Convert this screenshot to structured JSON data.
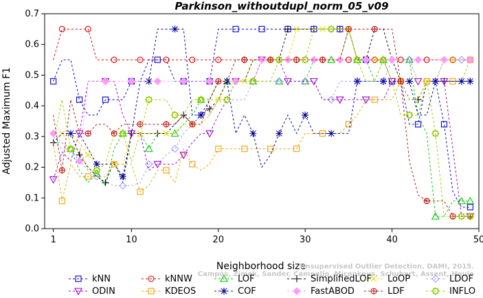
{
  "chart_data": {
    "type": "line",
    "title": "Parkinson_withoutdupl_norm_05_v09",
    "xlabel": "Neighborhood size",
    "ylabel": "Adjusted Maximum F1",
    "xlim": [
      0,
      50
    ],
    "ylim": [
      0,
      0.7
    ],
    "xticks": [
      1,
      10,
      20,
      30,
      40,
      50
    ],
    "yticks": [
      0.0,
      0.1,
      0.2,
      0.3,
      0.4,
      0.5,
      0.6,
      0.7
    ],
    "xtick_labels": [
      "1",
      "10",
      "20",
      "30",
      "40",
      "50"
    ],
    "ytick_labels": [
      "0.0",
      "0.1",
      "0.2",
      "0.3",
      "0.4",
      "0.5",
      "0.6",
      "0.7"
    ],
    "grid": false,
    "legend_position": "bottom",
    "annotation": {
      "line1": "Unsupervised Outlier Detection. DAMI, 2015.",
      "line2": "Campos, Zimek, Sander, Campello, Micenkova, Schubert, Assent, Houle"
    },
    "x": [
      1,
      2,
      3,
      4,
      5,
      6,
      7,
      8,
      9,
      10,
      11,
      12,
      13,
      14,
      15,
      16,
      17,
      18,
      19,
      20,
      21,
      22,
      23,
      24,
      25,
      26,
      27,
      28,
      29,
      30,
      31,
      32,
      33,
      34,
      35,
      36,
      37,
      38,
      39,
      40,
      41,
      42,
      43,
      44,
      45,
      46,
      47,
      48,
      49
    ],
    "series": [
      {
        "name": "kNN",
        "color": "#0000dd",
        "marker": "square",
        "values": [
          0.48,
          0.55,
          0.55,
          0.42,
          0.37,
          0.37,
          0.42,
          0.42,
          0.42,
          0.48,
          0.48,
          0.55,
          0.55,
          0.55,
          0.48,
          0.48,
          0.48,
          0.48,
          0.48,
          0.65,
          0.65,
          0.65,
          0.65,
          0.65,
          0.65,
          0.65,
          0.65,
          0.65,
          0.65,
          0.65,
          0.65,
          0.65,
          0.65,
          0.65,
          0.65,
          0.55,
          0.55,
          0.55,
          0.55,
          0.48,
          0.48,
          0.34,
          0.34,
          0.48,
          0.48,
          0.34,
          0.12,
          0.07,
          0.07
        ]
      },
      {
        "name": "kNNW",
        "color": "#dd0000",
        "marker": "circle",
        "values": [
          0.55,
          0.65,
          0.65,
          0.65,
          0.65,
          0.55,
          0.55,
          0.55,
          0.55,
          0.55,
          0.55,
          0.55,
          0.55,
          0.55,
          0.55,
          0.55,
          0.55,
          0.55,
          0.55,
          0.55,
          0.55,
          0.55,
          0.55,
          0.55,
          0.55,
          0.55,
          0.55,
          0.55,
          0.55,
          0.55,
          0.55,
          0.55,
          0.55,
          0.55,
          0.55,
          0.55,
          0.55,
          0.55,
          0.55,
          0.55,
          0.55,
          0.55,
          0.55,
          0.55,
          0.55,
          0.55,
          0.55,
          0.55,
          0.55
        ]
      },
      {
        "name": "LOF",
        "color": "#00cc00",
        "marker": "triangle-up",
        "values": [
          0.28,
          0.28,
          0.26,
          0.19,
          0.15,
          0.18,
          0.14,
          0.26,
          0.31,
          0.31,
          0.31,
          0.26,
          0.31,
          0.31,
          0.31,
          0.34,
          0.37,
          0.42,
          0.42,
          0.48,
          0.48,
          0.48,
          0.48,
          0.48,
          0.48,
          0.48,
          0.48,
          0.48,
          0.48,
          0.48,
          0.55,
          0.55,
          0.55,
          0.55,
          0.65,
          0.55,
          0.55,
          0.48,
          0.55,
          0.55,
          0.55,
          0.55,
          0.37,
          0.31,
          0.04,
          0.04,
          0.09,
          0.09,
          0.09
        ]
      },
      {
        "name": "SimplifiedLOF",
        "color": "#000000",
        "marker": "plus",
        "values": [
          0.28,
          0.31,
          0.31,
          0.24,
          0.2,
          0.17,
          0.15,
          0.22,
          0.15,
          0.31,
          0.31,
          0.31,
          0.31,
          0.31,
          0.34,
          0.37,
          0.34,
          0.37,
          0.39,
          0.42,
          0.48,
          0.48,
          0.48,
          0.55,
          0.55,
          0.55,
          0.55,
          0.65,
          0.65,
          0.65,
          0.65,
          0.65,
          0.65,
          0.65,
          0.65,
          0.55,
          0.55,
          0.65,
          0.65,
          0.55,
          0.48,
          0.42,
          0.42,
          0.48,
          0.48,
          0.48,
          0.48,
          0.48,
          0.48
        ]
      },
      {
        "name": "LoOP",
        "color": "#e6d800",
        "marker": "x",
        "values": [
          0.28,
          0.31,
          0.31,
          0.28,
          0.24,
          0.21,
          0.21,
          0.21,
          0.21,
          0.31,
          0.31,
          0.31,
          0.31,
          0.31,
          0.31,
          0.34,
          0.34,
          0.34,
          0.37,
          0.42,
          0.48,
          0.48,
          0.48,
          0.55,
          0.55,
          0.55,
          0.55,
          0.55,
          0.65,
          0.65,
          0.65,
          0.65,
          0.65,
          0.65,
          0.65,
          0.55,
          0.55,
          0.55,
          0.55,
          0.48,
          0.48,
          0.42,
          0.42,
          0.48,
          0.48,
          0.55,
          0.55,
          0.55,
          0.55
        ]
      },
      {
        "name": "LDOF",
        "color": "#a0a0ff",
        "marker": "diamond",
        "values": [
          0.28,
          0.26,
          0.26,
          0.22,
          0.19,
          0.17,
          0.15,
          0.14,
          0.14,
          0.14,
          0.15,
          0.21,
          0.21,
          0.24,
          0.26,
          0.31,
          0.34,
          0.37,
          0.37,
          0.42,
          0.42,
          0.42,
          0.42,
          0.48,
          0.48,
          0.48,
          0.48,
          0.48,
          0.48,
          0.48,
          0.48,
          0.42,
          0.42,
          0.48,
          0.48,
          0.48,
          0.48,
          0.48,
          0.48,
          0.55,
          0.55,
          0.55,
          0.48,
          0.48,
          0.48,
          0.55,
          0.55,
          0.55,
          0.55
        ]
      },
      {
        "name": "ODIN",
        "color": "#9900cc",
        "marker": "triangle-down",
        "values": [
          0.16,
          0.25,
          0.22,
          0.31,
          0.48,
          0.48,
          0.48,
          0.48,
          0.37,
          0.31,
          0.31,
          0.19,
          0.21,
          0.21,
          0.21,
          0.24,
          0.28,
          0.31,
          0.31,
          0.37,
          0.42,
          0.48,
          0.48,
          0.48,
          0.55,
          0.55,
          0.55,
          0.48,
          0.48,
          0.48,
          0.48,
          0.42,
          0.42,
          0.42,
          0.42,
          0.42,
          0.42,
          0.42,
          0.42,
          0.48,
          0.48,
          0.48,
          0.48,
          0.48,
          0.48,
          0.48,
          0.26,
          0.04,
          0.04
        ]
      },
      {
        "name": "KDEOS",
        "color": "#f0a000",
        "marker": "square",
        "values": [
          0.28,
          0.09,
          0.21,
          0.17,
          0.17,
          0.17,
          0.17,
          0.21,
          0.21,
          0.21,
          0.12,
          0.14,
          0.19,
          0.19,
          0.15,
          0.26,
          0.21,
          0.19,
          0.21,
          0.26,
          0.26,
          0.26,
          0.26,
          0.26,
          0.26,
          0.26,
          0.26,
          0.26,
          0.26,
          0.31,
          0.31,
          0.31,
          0.31,
          0.31,
          0.34,
          0.37,
          0.42,
          0.42,
          0.42,
          0.42,
          0.48,
          0.48,
          0.48,
          0.48,
          0.48,
          0.48,
          0.48,
          0.48,
          0.55
        ]
      },
      {
        "name": "COF",
        "color": "#000099",
        "marker": "star",
        "values": [
          0.28,
          0.31,
          0.31,
          0.31,
          0.26,
          0.21,
          0.21,
          0.21,
          0.17,
          0.31,
          0.48,
          0.48,
          0.65,
          0.65,
          0.65,
          0.65,
          0.37,
          0.37,
          0.42,
          0.48,
          0.48,
          0.31,
          0.37,
          0.31,
          0.2,
          0.24,
          0.31,
          0.37,
          0.31,
          0.37,
          0.31,
          0.31,
          0.31,
          0.31,
          0.31,
          0.48,
          0.48,
          0.48,
          0.48,
          0.48,
          0.48,
          0.48,
          0.37,
          0.37,
          0.48,
          0.48,
          0.48,
          0.48,
          0.48
        ]
      },
      {
        "name": "FastABOD",
        "color": "#ff99ff",
        "marker": "diamond-filled",
        "values": [
          0.31,
          0.28,
          0.24,
          0.22,
          0.48,
          0.48,
          0.48,
          0.48,
          0.48,
          0.48,
          0.48,
          0.48,
          0.48,
          0.48,
          0.48,
          0.48,
          0.48,
          0.48,
          0.48,
          0.48,
          0.48,
          0.48,
          0.48,
          0.48,
          0.55,
          0.55,
          0.55,
          0.55,
          0.55,
          0.55,
          0.55,
          0.55,
          0.55,
          0.55,
          0.55,
          0.55,
          0.55,
          0.55,
          0.55,
          0.55,
          0.55,
          0.55,
          0.55,
          0.55,
          0.55,
          0.55,
          0.55,
          0.55,
          0.55
        ]
      },
      {
        "name": "LDF",
        "color": "#bb1111",
        "marker": "circle-plus",
        "values": [
          0.37,
          0.19,
          0.42,
          0.31,
          0.31,
          0.34,
          0.34,
          0.31,
          0.34,
          0.34,
          0.34,
          0.34,
          0.34,
          0.34,
          0.34,
          0.37,
          0.34,
          0.34,
          0.42,
          0.48,
          0.48,
          0.55,
          0.55,
          0.55,
          0.55,
          0.55,
          0.55,
          0.55,
          0.55,
          0.55,
          0.55,
          0.55,
          0.55,
          0.55,
          0.65,
          0.65,
          0.65,
          0.65,
          0.65,
          0.65,
          0.48,
          0.22,
          0.11,
          0.09,
          0.09,
          0.09,
          0.04,
          0.04,
          0.04
        ]
      },
      {
        "name": "INFLO",
        "color": "#99cc00",
        "marker": "sun",
        "values": [
          0.28,
          0.42,
          0.26,
          0.26,
          0.19,
          0.19,
          0.21,
          0.31,
          0.31,
          0.22,
          0.31,
          0.42,
          0.42,
          0.42,
          0.37,
          0.37,
          0.42,
          0.42,
          0.42,
          0.42,
          0.42,
          0.48,
          0.48,
          0.48,
          0.48,
          0.48,
          0.55,
          0.55,
          0.55,
          0.55,
          0.65,
          0.65,
          0.65,
          0.65,
          0.65,
          0.55,
          0.48,
          0.48,
          0.55,
          0.48,
          0.37,
          0.37,
          0.37,
          0.48,
          0.31,
          0.04,
          0.04,
          0.04,
          0.04
        ]
      }
    ]
  }
}
